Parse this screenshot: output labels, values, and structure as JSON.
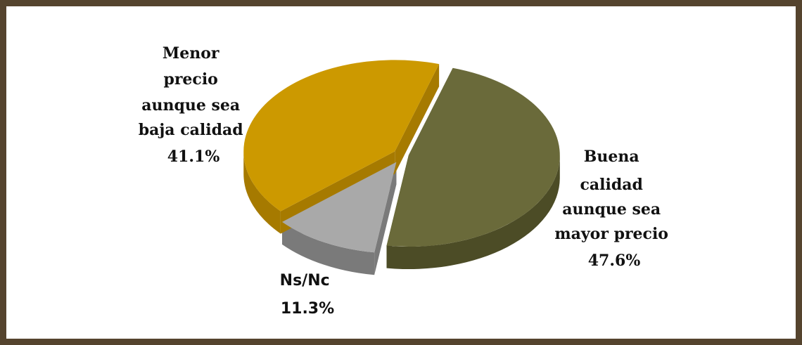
{
  "chart_data": {
    "type": "pie",
    "style": "3d-exploded",
    "slices": [
      {
        "label_lines": [
          "Buena",
          "calidad",
          "aunque sea",
          "mayor precio"
        ],
        "value": 47.6,
        "value_label": "47.6%",
        "color": "#6a6a3a",
        "side_color": "#4c4c26"
      },
      {
        "label_lines": [
          "Ns/Nc"
        ],
        "value": 11.3,
        "value_label": "11.3%",
        "color": "#a9a9a9",
        "side_color": "#7a7a7a"
      },
      {
        "label_lines": [
          "Menor",
          "precio",
          "aunque sea",
          "baja calidad"
        ],
        "value": 41.1,
        "value_label": "41.1%",
        "color": "#cc9900",
        "side_color": "#a67a00"
      }
    ],
    "legend": "none",
    "frame_color": "#55442e"
  }
}
